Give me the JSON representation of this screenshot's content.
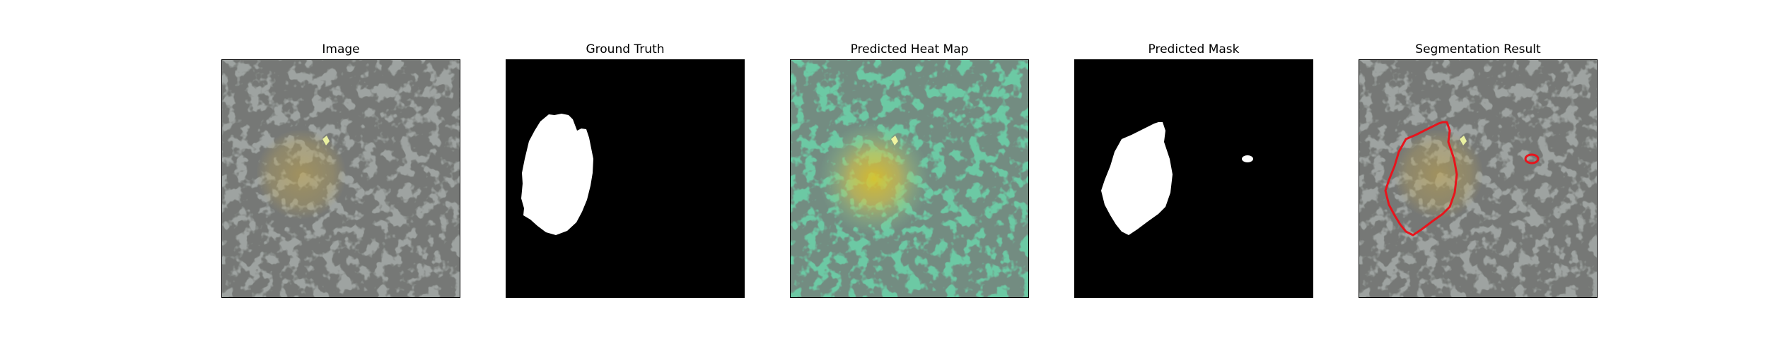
{
  "panels": [
    {
      "id": "image",
      "title": "Image"
    },
    {
      "id": "ground-truth",
      "title": "Ground Truth"
    },
    {
      "id": "heatmap",
      "title": "Predicted Heat Map"
    },
    {
      "id": "mask",
      "title": "Predicted Mask"
    },
    {
      "id": "segmentation",
      "title": "Segmentation Result"
    }
  ],
  "colors": {
    "texture_base": "#9ea3a1",
    "texture_spot": "#2f302f",
    "lesion_tint": "#b8a25a",
    "heatmap_cool": "#5fc7a0",
    "heatmap_hot": "#e0c43a",
    "mask_fg": "#ffffff",
    "mask_bg": "#000000",
    "contour": "#e8141c"
  }
}
